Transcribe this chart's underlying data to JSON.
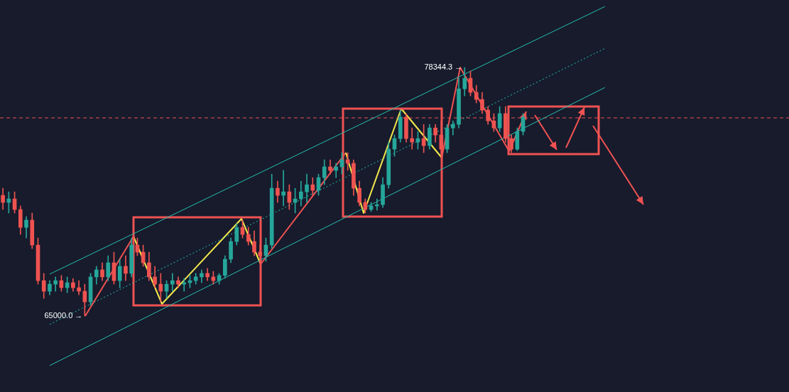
{
  "chart_data": {
    "type": "candlestick",
    "categories": [
      null,
      null,
      null,
      null,
      null,
      null,
      null,
      null,
      null,
      null,
      null,
      null,
      null,
      null,
      null,
      null,
      null,
      null,
      null,
      null,
      null,
      null,
      null,
      null,
      null,
      null,
      null,
      null,
      null,
      null,
      null,
      null,
      null,
      null,
      null,
      null,
      null,
      null,
      null,
      null,
      null,
      null,
      null,
      null,
      null,
      null,
      null,
      null,
      null,
      null,
      null,
      null,
      null,
      null,
      null,
      null,
      null,
      null,
      null,
      null,
      null,
      null,
      null,
      null,
      null,
      null,
      null,
      null,
      null,
      null,
      null,
      null,
      null,
      null,
      null,
      null,
      null,
      null,
      null,
      null,
      null,
      null,
      null,
      null,
      null,
      null,
      null,
      null,
      null,
      null,
      null,
      null,
      null,
      null,
      null,
      null,
      null,
      null,
      null,
      null,
      null,
      null,
      null,
      null,
      null,
      null,
      null,
      null,
      null,
      null,
      null,
      null,
      null,
      null,
      null,
      null,
      null,
      null,
      null,
      null,
      null,
      null,
      null,
      null,
      null,
      null,
      null,
      null,
      null,
      null,
      null,
      null,
      null,
      null,
      null
    ],
    "ohlc": [
      [
        71480,
        71860,
        70720,
        71100
      ],
      [
        71100,
        71670,
        70530,
        71290
      ],
      [
        71290,
        71670,
        70530,
        70720
      ],
      [
        70720,
        70910,
        69380,
        69760
      ],
      [
        69760,
        70340,
        69190,
        70150
      ],
      [
        70150,
        70530,
        68620,
        68810
      ],
      [
        68810,
        69190,
        66710,
        66900
      ],
      [
        66900,
        67290,
        65950,
        66330
      ],
      [
        66330,
        66900,
        66140,
        66710
      ],
      [
        66710,
        67100,
        66330,
        66900
      ],
      [
        66900,
        67180,
        66330,
        66520
      ],
      [
        66520,
        67100,
        66250,
        66790
      ],
      [
        66790,
        67020,
        66330,
        66520
      ],
      [
        66520,
        66900,
        66140,
        66330
      ],
      [
        66330,
        66710,
        65000.0,
        65760
      ],
      [
        65760,
        67290,
        65570,
        67100
      ],
      [
        67100,
        67670,
        66710,
        67480
      ],
      [
        67480,
        67860,
        66900,
        67100
      ],
      [
        67100,
        68240,
        66900,
        67860
      ],
      [
        67860,
        68430,
        66710,
        66900
      ],
      [
        66900,
        68050,
        66520,
        67670
      ],
      [
        67670,
        68240,
        66900,
        67290
      ],
      [
        67290,
        69190,
        67100,
        68810
      ],
      [
        68810,
        69190,
        68240,
        68430
      ],
      [
        68430,
        68810,
        67670,
        67860
      ],
      [
        67860,
        68430,
        66900,
        67100
      ],
      [
        67100,
        67670,
        66520,
        66710
      ],
      [
        66710,
        67290,
        65760,
        66330
      ],
      [
        66330,
        66900,
        65950,
        66710
      ],
      [
        66710,
        67290,
        66330,
        66900
      ],
      [
        66900,
        67100,
        66520,
        66710
      ],
      [
        66710,
        67020,
        66330,
        66790
      ],
      [
        66790,
        67180,
        66520,
        66900
      ],
      [
        66900,
        67290,
        66710,
        67100
      ],
      [
        67100,
        67480,
        66790,
        67290
      ],
      [
        67290,
        67560,
        66900,
        67100
      ],
      [
        67100,
        67400,
        66710,
        66900
      ],
      [
        66900,
        67290,
        66710,
        67180
      ],
      [
        67180,
        68240,
        67020,
        68050
      ],
      [
        68050,
        69190,
        67860,
        69000
      ],
      [
        69000,
        69960,
        68810,
        69760
      ],
      [
        69760,
        70150,
        69190,
        69380
      ],
      [
        69380,
        69760,
        68810,
        69000
      ],
      [
        69000,
        69570,
        68240,
        68430
      ],
      [
        68430,
        68810,
        67860,
        68240
      ],
      [
        68240,
        69190,
        67940,
        68810
      ],
      [
        68810,
        72620,
        68620,
        71860
      ],
      [
        71860,
        72240,
        71100,
        71480
      ],
      [
        71480,
        72820,
        70910,
        71670
      ],
      [
        71670,
        72050,
        70720,
        71100
      ],
      [
        71100,
        71860,
        70530,
        71290
      ],
      [
        71290,
        72240,
        70910,
        71670
      ],
      [
        71670,
        72620,
        71100,
        72050
      ],
      [
        72050,
        72430,
        71480,
        71750
      ],
      [
        71750,
        72620,
        71480,
        72430
      ],
      [
        72430,
        73390,
        72050,
        73010
      ],
      [
        73010,
        73390,
        72620,
        72820
      ],
      [
        72820,
        73200,
        72430,
        73010
      ],
      [
        73010,
        73770,
        72620,
        73390
      ],
      [
        73390,
        73770,
        72820,
        73200
      ],
      [
        73200,
        73390,
        71480,
        71860
      ],
      [
        71860,
        72240,
        70910,
        71100
      ],
      [
        71100,
        71290,
        70530,
        70720
      ],
      [
        70720,
        71100,
        70610,
        70910
      ],
      [
        70910,
        71290,
        70680,
        70980
      ],
      [
        70980,
        72430,
        70830,
        72050
      ],
      [
        72050,
        74340,
        71860,
        73960
      ],
      [
        73960,
        74720,
        73580,
        74530
      ],
      [
        74530,
        76060,
        74340,
        75680
      ],
      [
        75680,
        75870,
        74340,
        74530
      ],
      [
        74530,
        75100,
        73960,
        74340
      ],
      [
        74340,
        74910,
        73960,
        74530
      ],
      [
        74530,
        75290,
        73770,
        74150
      ],
      [
        74150,
        75290,
        73960,
        75100
      ],
      [
        75100,
        75290,
        74340,
        74720
      ],
      [
        74720,
        75480,
        73580,
        73960
      ],
      [
        73960,
        75290,
        73770,
        75100
      ],
      [
        75100,
        75480,
        74720,
        75290
      ],
      [
        75290,
        77770,
        75100,
        77200
      ],
      [
        77200,
        78344.3,
        76820,
        77770
      ],
      [
        77770,
        78150,
        76820,
        77010
      ],
      [
        77010,
        77390,
        76440,
        76630
      ],
      [
        76630,
        77010,
        75870,
        76060
      ],
      [
        76060,
        76250,
        75290,
        75480
      ],
      [
        75480,
        75870,
        74910,
        75100
      ],
      [
        75100,
        76250,
        74910,
        75870
      ],
      [
        75870,
        76250,
        74340,
        74530
      ],
      [
        74530,
        74720,
        73770,
        73960
      ],
      [
        73960,
        75100,
        73880,
        74910
      ],
      [
        74910,
        75870,
        74720,
        75680
      ],
      null,
      null,
      null,
      null,
      null,
      null,
      null,
      null,
      null,
      null,
      null,
      null,
      null,
      null,
      null,
      null,
      null,
      null,
      null,
      null,
      null,
      null,
      null,
      null,
      null,
      null,
      null,
      null,
      null,
      null,
      null,
      null,
      null,
      null,
      null,
      null,
      null,
      null,
      null,
      null,
      null,
      null,
      null,
      null,
      null
    ],
    "colors": [
      "#ef5350",
      "#26a69a",
      "#ef5350",
      "#ef5350",
      "#26a69a",
      "#ef5350",
      "#ef5350",
      "#ef5350",
      "#26a69a",
      "#26a69a",
      "#ef5350",
      "#26a69a",
      "#ef5350",
      "#ef5350",
      "#ef5350",
      "#26a69a",
      "#26a69a",
      "#ef5350",
      "#26a69a",
      "#ef5350",
      "#26a69a",
      "#ef5350",
      "#26a69a",
      "#ef5350",
      "#ef5350",
      "#ef5350",
      "#ef5350",
      "#ef5350",
      "#26a69a",
      "#26a69a",
      "#ef5350",
      "#26a69a",
      "#26a69a",
      "#26a69a",
      "#26a69a",
      "#ef5350",
      "#ef5350",
      "#26a69a",
      "#26a69a",
      "#26a69a",
      "#26a69a",
      "#ef5350",
      "#ef5350",
      "#ef5350",
      "#ef5350",
      "#26a69a",
      "#26a69a",
      "#ef5350",
      "#26a69a",
      "#ef5350",
      "#26a69a",
      "#26a69a",
      "#26a69a",
      "#ef5350",
      "#26a69a",
      "#26a69a",
      "#ef5350",
      "#26a69a",
      "#26a69a",
      "#ef5350",
      "#ef5350",
      "#ef5350",
      "#ef5350",
      "#26a69a",
      "#26a69a",
      "#26a69a",
      "#26a69a",
      "#26a69a",
      "#26a69a",
      "#ef5350",
      "#ef5350",
      "#26a69a",
      "#ef5350",
      "#26a69a",
      "#ef5350",
      "#ef5350",
      "#26a69a",
      "#26a69a",
      "#26a69a",
      "#26a69a",
      "#ef5350",
      "#ef5350",
      "#ef5350",
      "#ef5350",
      "#ef5350",
      "#26a69a",
      "#ef5350",
      "#ef5350",
      "#26a69a",
      "#26a69a",
      null,
      null,
      null,
      null,
      null,
      null,
      null,
      null,
      null,
      null,
      null,
      null,
      null,
      null,
      null,
      null,
      null,
      null,
      null,
      null,
      null,
      null,
      null,
      null,
      null,
      null,
      null,
      null,
      null,
      null,
      null,
      null,
      null,
      null,
      null,
      null,
      null,
      null,
      null,
      null,
      null,
      null,
      null,
      null,
      null
    ],
    "series": [
      {
        "type": "line",
        "color": "#26bfae",
        "line_style": "solid",
        "values": [
          null,
          null,
          null,
          null,
          null,
          null,
          null,
          null,
          67250,
          null,
          null,
          null,
          null,
          null,
          null,
          null,
          null,
          null,
          null,
          null,
          null,
          null,
          null,
          null,
          null,
          null,
          null,
          null,
          null,
          null,
          null,
          null,
          null,
          null,
          null,
          null,
          null,
          null,
          null,
          null,
          null,
          null,
          null,
          null,
          null,
          null,
          null,
          null,
          null,
          null,
          null,
          null,
          null,
          null,
          null,
          null,
          null,
          null,
          null,
          null,
          null,
          null,
          null,
          null,
          null,
          null,
          null,
          null,
          null,
          null,
          null,
          null,
          null,
          null,
          null,
          null,
          null,
          null,
          null,
          null,
          null,
          null,
          null,
          null,
          null,
          null,
          null,
          null,
          null,
          null,
          null,
          null,
          null,
          null,
          null,
          null,
          null,
          null,
          null,
          null,
          null,
          null,
          null,
          81620,
          null,
          null,
          null,
          null,
          null,
          null,
          null,
          null,
          null,
          null,
          null,
          null,
          null,
          null,
          null,
          null,
          null,
          null,
          null,
          null,
          null,
          null,
          null,
          null,
          null,
          null,
          null,
          null,
          null,
          null,
          null
        ]
      },
      {
        "type": "line",
        "color": "#26bfae",
        "line_style": "dotted",
        "values": [
          null,
          null,
          null,
          null,
          null,
          null,
          null,
          null,
          64550,
          null,
          null,
          null,
          null,
          null,
          null,
          null,
          null,
          null,
          null,
          null,
          null,
          null,
          null,
          null,
          null,
          null,
          null,
          null,
          null,
          null,
          null,
          null,
          null,
          null,
          null,
          null,
          null,
          null,
          null,
          null,
          null,
          null,
          null,
          null,
          null,
          null,
          null,
          null,
          null,
          null,
          null,
          null,
          null,
          null,
          null,
          null,
          null,
          null,
          null,
          null,
          null,
          null,
          null,
          null,
          null,
          null,
          null,
          null,
          null,
          null,
          null,
          null,
          null,
          null,
          null,
          null,
          null,
          null,
          null,
          null,
          null,
          null,
          null,
          null,
          null,
          null,
          null,
          null,
          null,
          null,
          null,
          null,
          null,
          null,
          null,
          null,
          null,
          null,
          null,
          null,
          null,
          null,
          null,
          79370,
          null,
          null,
          null,
          null,
          null,
          null,
          null,
          null,
          null,
          null,
          null,
          null,
          null,
          null,
          null,
          null,
          null,
          null,
          null,
          null,
          null,
          null,
          null,
          null,
          null,
          null,
          null,
          null,
          null,
          null,
          null
        ]
      },
      {
        "type": "line",
        "color": "#26bfae",
        "line_style": "solid",
        "values": [
          null,
          null,
          null,
          null,
          null,
          null,
          null,
          null,
          62340,
          null,
          null,
          null,
          null,
          null,
          null,
          null,
          null,
          null,
          null,
          null,
          null,
          null,
          null,
          null,
          null,
          null,
          null,
          null,
          null,
          null,
          null,
          null,
          null,
          null,
          null,
          null,
          null,
          null,
          null,
          null,
          null,
          null,
          null,
          null,
          null,
          null,
          null,
          null,
          null,
          null,
          null,
          null,
          null,
          null,
          null,
          null,
          null,
          null,
          null,
          null,
          null,
          null,
          null,
          null,
          null,
          null,
          null,
          null,
          null,
          null,
          null,
          null,
          null,
          null,
          null,
          null,
          null,
          null,
          null,
          null,
          null,
          null,
          null,
          null,
          null,
          null,
          null,
          null,
          null,
          null,
          null,
          null,
          null,
          null,
          null,
          null,
          null,
          null,
          null,
          null,
          null,
          null,
          null,
          77270,
          null,
          null,
          null,
          null,
          null,
          null,
          null,
          null,
          null,
          null,
          null,
          null,
          null,
          null,
          null,
          null,
          null,
          null,
          null,
          null,
          null,
          null,
          null,
          null,
          null,
          null,
          null,
          null,
          null,
          null,
          null
        ]
      }
    ],
    "ylim": [
      60920,
      81970
    ],
    "ref_lines": [
      {
        "axis": "y",
        "value": 75640,
        "color": "#ef5350",
        "line_style": "dashed"
      }
    ],
    "annotations": [
      {
        "text": "65000.0 →",
        "y": 65000.0
      },
      "78344.3 →"
    ],
    "marker": "none",
    "grid": false,
    "legend": false,
    "tick_labels": false
  }
}
